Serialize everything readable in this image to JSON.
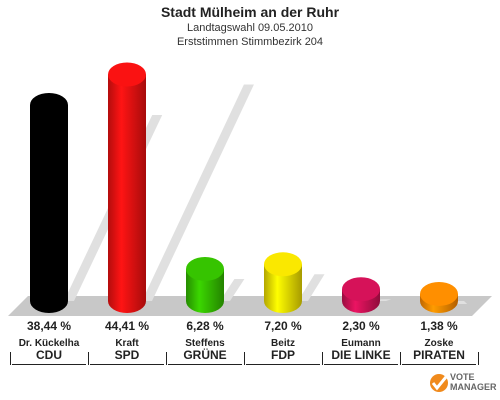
{
  "header": {
    "title": "Stadt Mülheim an der Ruhr",
    "subtitle1": "Landtagswahl 09.05.2010",
    "subtitle2": "Erststimmen Stimmbezirk 204"
  },
  "chart_data": {
    "type": "bar",
    "title": "Stadt Mülheim an der Ruhr",
    "subtitle": [
      "Landtagswahl 09.05.2010",
      "Erststimmen Stimmbezirk 204"
    ],
    "categories": [
      "CDU",
      "SPD",
      "GRÜNE",
      "FDP",
      "DIE LINKE",
      "PIRATEN"
    ],
    "candidates": [
      "Dr. Kückelha",
      "Kraft",
      "Steffens",
      "Beitz",
      "Eumann",
      "Zoske"
    ],
    "values": [
      38.44,
      44.41,
      6.28,
      7.2,
      2.3,
      1.38
    ],
    "labels": [
      "38,44 %",
      "44,41 %",
      "6,28 %",
      "7,20 %",
      "2,30 %",
      "1,38 %"
    ],
    "colors": [
      "#000000",
      "#ee1111",
      "#33bb00",
      "#eedd00",
      "#cc1155",
      "#ff8800"
    ],
    "ylim": [
      0,
      50
    ]
  },
  "logo": {
    "line1": "VOTE",
    "line2": "MANAGER"
  }
}
